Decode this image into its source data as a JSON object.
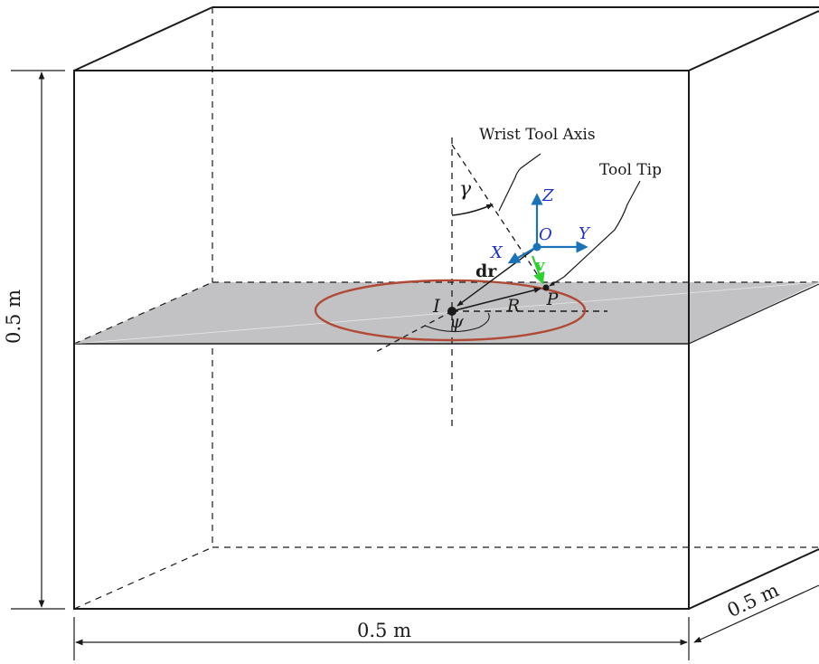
{
  "labels": {
    "height_dim": "0.5 m",
    "width_dim": "0.5 m",
    "depth_dim": "0.5 m",
    "wrist_tool_axis": "Wrist Tool Axis",
    "tool_tip": "Tool Tip",
    "gamma": "γ",
    "psi": "ψ",
    "point_I": "I",
    "point_P": "P",
    "point_O": "O",
    "radius_R": "R",
    "axis_X": "X",
    "axis_Y": "Y",
    "axis_Z": "Z",
    "vector_v": "v",
    "vector_dr": "dr"
  },
  "colors": {
    "plane_fill": "#c2c2c4",
    "circle_stroke": "#b04a36",
    "axes": "#1a73b8",
    "axis_labels": "#1f2fd0",
    "velocity": "#2fd12f",
    "line": "#1a1a1a"
  }
}
